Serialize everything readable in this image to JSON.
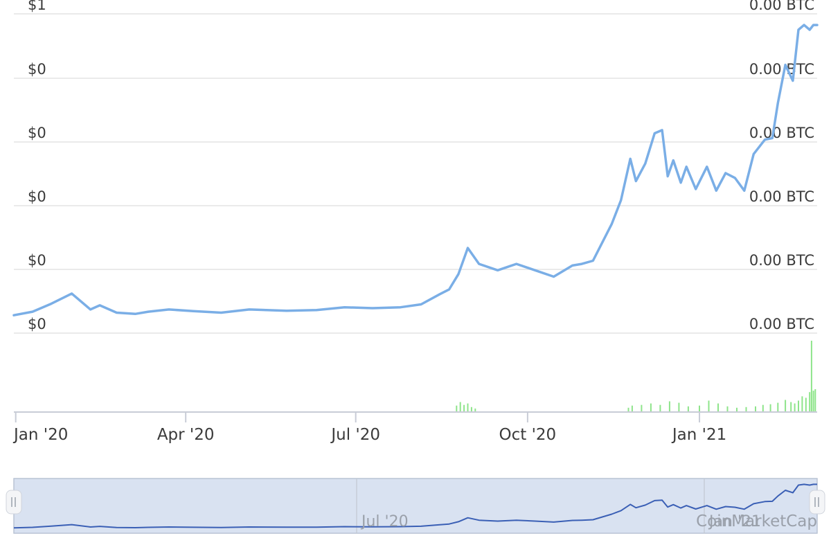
{
  "chart_data": {
    "type": "line",
    "title": "",
    "xlabel": "",
    "ylabel": "",
    "y_left_ticks": [
      "$1",
      "$0",
      "$0",
      "$0",
      "$0",
      "$0"
    ],
    "y_right_ticks": [
      "0.00 BTC",
      "0.00 BTC",
      "0.00 BTC",
      "0.00 BTC",
      "0.00 BTC",
      "0.00 BTC"
    ],
    "x_ticks": [
      "Jan '20",
      "Apr '20",
      "Jul '20",
      "Oct '20",
      "Jan '21"
    ],
    "x_range": [
      "2019-12-31",
      "2021-03-05"
    ],
    "ylim": [
      0.0,
      1.0
    ],
    "grid": true,
    "series": [
      {
        "kind": "price",
        "x": [
          "2019-12-31",
          "2020-01-10",
          "2020-01-20",
          "2020-01-31",
          "2020-02-10",
          "2020-02-15",
          "2020-02-24",
          "2020-03-05",
          "2020-03-12",
          "2020-03-23",
          "2020-04-05",
          "2020-04-20",
          "2020-05-05",
          "2020-05-25",
          "2020-06-10",
          "2020-06-25",
          "2020-07-10",
          "2020-07-25",
          "2020-08-05",
          "2020-08-15",
          "2020-08-20",
          "2020-08-25",
          "2020-08-30",
          "2020-09-05",
          "2020-09-15",
          "2020-09-25",
          "2020-10-05",
          "2020-10-15",
          "2020-10-25",
          "2020-10-30",
          "2020-11-05",
          "2020-11-15",
          "2020-11-20",
          "2020-11-25",
          "2020-11-28",
          "2020-12-03",
          "2020-12-08",
          "2020-12-12",
          "2020-12-15",
          "2020-12-18",
          "2020-12-22",
          "2020-12-25",
          "2020-12-30",
          "2021-01-05",
          "2021-01-10",
          "2021-01-15",
          "2021-01-20",
          "2021-01-25",
          "2021-01-30",
          "2021-02-05",
          "2021-02-09",
          "2021-02-12",
          "2021-02-16",
          "2021-02-20",
          "2021-02-23",
          "2021-02-26",
          "2021-03-01",
          "2021-03-03",
          "2021-03-05"
        ],
        "y": [
          0.054,
          0.065,
          0.09,
          0.122,
          0.072,
          0.085,
          0.062,
          0.058,
          0.065,
          0.072,
          0.067,
          0.062,
          0.072,
          0.068,
          0.07,
          0.079,
          0.076,
          0.079,
          0.088,
          0.12,
          0.135,
          0.183,
          0.265,
          0.215,
          0.195,
          0.215,
          0.195,
          0.175,
          0.21,
          0.215,
          0.225,
          0.34,
          0.415,
          0.545,
          0.475,
          0.53,
          0.625,
          0.635,
          0.49,
          0.54,
          0.47,
          0.52,
          0.45,
          0.52,
          0.445,
          0.5,
          0.485,
          0.445,
          0.56,
          0.605,
          0.61,
          0.72,
          0.84,
          0.79,
          0.95,
          0.965,
          0.95,
          0.965,
          0.965
        ]
      },
      {
        "kind": "volume",
        "x": [
          "2020-02-05",
          "2020-02-08",
          "2020-08-24",
          "2020-08-26",
          "2020-08-28",
          "2020-08-30",
          "2020-09-01",
          "2020-09-03",
          "2020-11-24",
          "2020-11-26",
          "2020-12-01",
          "2020-12-06",
          "2020-12-11",
          "2020-12-16",
          "2020-12-21",
          "2020-12-26",
          "2021-01-01",
          "2021-01-06",
          "2021-01-11",
          "2021-01-16",
          "2021-01-21",
          "2021-01-26",
          "2021-01-31",
          "2021-02-04",
          "2021-02-08",
          "2021-02-12",
          "2021-02-16",
          "2021-02-19",
          "2021-02-21",
          "2021-02-23",
          "2021-02-25",
          "2021-02-27",
          "2021-03-01",
          "2021-03-02",
          "2021-03-03",
          "2021-03-04"
        ],
        "y": [
          0.01,
          0.01,
          0.09,
          0.14,
          0.1,
          0.12,
          0.07,
          0.05,
          0.06,
          0.09,
          0.1,
          0.12,
          0.1,
          0.15,
          0.13,
          0.08,
          0.09,
          0.16,
          0.12,
          0.08,
          0.06,
          0.07,
          0.08,
          0.1,
          0.11,
          0.13,
          0.17,
          0.14,
          0.12,
          0.16,
          0.22,
          0.2,
          0.28,
          1.0,
          0.3,
          0.32
        ]
      }
    ]
  },
  "navigator": {
    "labels": [
      "Jul '20",
      "Jan '21"
    ],
    "left_handle_icon": "handle-grip-icon",
    "right_handle_icon": "handle-grip-icon"
  },
  "watermark": "CoinMarketCap",
  "colors": {
    "price_line": "#7aaee6",
    "volume_bar": "#8ee48a",
    "grid": "#e4e4e4",
    "navigator_fill": "#d9e2f1",
    "navigator_line": "#3a5fb5"
  }
}
